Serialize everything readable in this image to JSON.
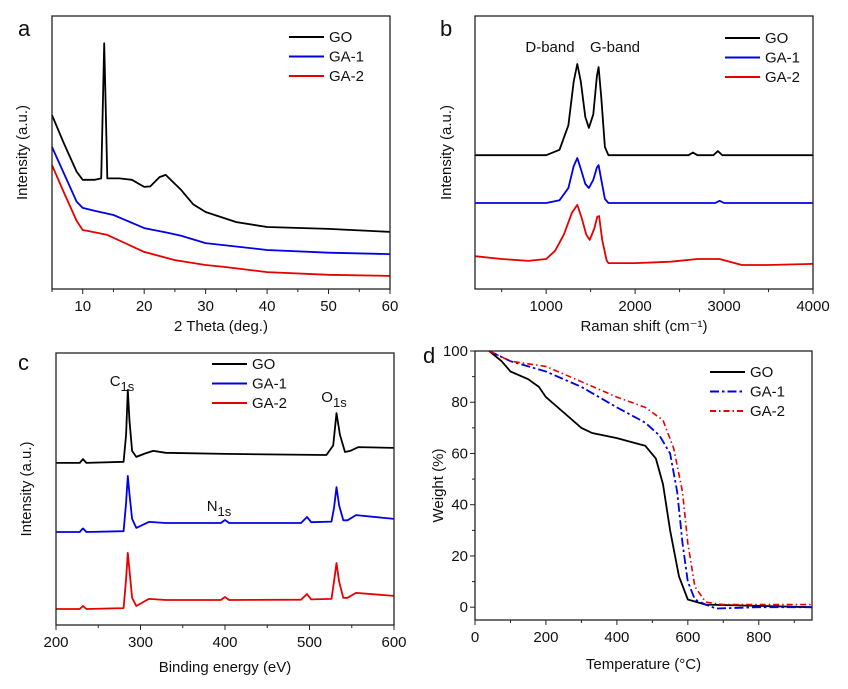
{
  "chart_data": [
    {
      "panel": "a",
      "type": "line",
      "xlabel": "2 Theta (deg.)",
      "ylabel": "Intensity (a.u.)",
      "xlim": [
        5,
        60
      ],
      "ylim": [
        0,
        100
      ],
      "xticks": [
        10,
        20,
        30,
        40,
        50,
        60
      ],
      "grid": false,
      "legend": "top-right",
      "annotations": [],
      "series": [
        {
          "name": "GO",
          "color": "#000000",
          "style": "solid",
          "x": [
            5,
            7,
            9,
            10,
            12,
            13,
            13.3,
            13.5,
            13.7,
            14,
            16,
            18,
            20,
            21,
            22.5,
            23.5,
            25,
            26,
            28,
            30,
            35,
            40,
            50,
            60
          ],
          "y": [
            63.7,
            53,
            43,
            40,
            40,
            40.5,
            70,
            90,
            70,
            40.5,
            40.5,
            40,
            37.4,
            37.6,
            41,
            41.8,
            38.5,
            36.3,
            31,
            28.2,
            24.5,
            22.7,
            22,
            20.9
          ]
        },
        {
          "name": "GA-1",
          "color": "#0000e6",
          "style": "solid",
          "x": [
            5,
            7,
            9,
            10,
            12,
            15,
            20,
            24,
            26,
            30,
            40,
            50,
            60
          ],
          "y": [
            52,
            42,
            32,
            29.7,
            28.6,
            27.1,
            22.3,
            20.5,
            19.5,
            16.8,
            14.3,
            13.3,
            12.8
          ]
        },
        {
          "name": "GA-2",
          "color": "#e60000",
          "style": "solid",
          "x": [
            5,
            7,
            9,
            10,
            11,
            14,
            20,
            25,
            30,
            33,
            40,
            50,
            60
          ],
          "y": [
            45.4,
            35,
            25,
            21.6,
            21.2,
            19.8,
            13.6,
            10.6,
            8.8,
            8.1,
            6.2,
            5.2,
            4.8
          ]
        }
      ]
    },
    {
      "panel": "b",
      "type": "line",
      "xlabel": "Raman shift (cm⁻¹)",
      "ylabel": "Intensity (a.u.)",
      "xlim": [
        200,
        4000
      ],
      "ylim": [
        0,
        100
      ],
      "xticks": [
        1000,
        2000,
        3000,
        4000
      ],
      "grid": false,
      "legend": "top-right",
      "annotations": [
        {
          "text": "D-band"
        },
        {
          "text": "G-band"
        }
      ],
      "series": [
        {
          "name": "GO",
          "color": "#000000",
          "style": "solid",
          "x": [
            200,
            1000,
            1150,
            1250,
            1310,
            1350,
            1390,
            1440,
            1480,
            1530,
            1570,
            1590,
            1620,
            1660,
            1700,
            2600,
            2650,
            2700,
            2880,
            2930,
            2980,
            3200,
            4000
          ],
          "y": [
            49,
            49,
            51,
            60,
            76,
            82.4,
            76,
            63,
            59,
            64,
            78,
            81.3,
            70,
            52,
            49,
            49,
            50,
            49,
            49,
            50.5,
            49,
            49,
            49
          ]
        },
        {
          "name": "GA-1",
          "color": "#0000e6",
          "style": "solid",
          "x": [
            200,
            1000,
            1150,
            1250,
            1310,
            1350,
            1390,
            1440,
            1480,
            1530,
            1570,
            1590,
            1620,
            1660,
            1700,
            2900,
            2950,
            3000,
            4000
          ],
          "y": [
            31.5,
            31.5,
            32.5,
            37,
            45,
            48,
            44,
            38.5,
            37,
            40,
            44.5,
            45.4,
            40,
            33,
            31.5,
            31.5,
            32.3,
            31.5,
            31.5
          ]
        },
        {
          "name": "GA-2",
          "color": "#e60000",
          "style": "solid",
          "x": [
            200,
            500,
            800,
            1000,
            1100,
            1200,
            1290,
            1350,
            1400,
            1450,
            1490,
            1540,
            1575,
            1595,
            1630,
            1680,
            1700,
            2000,
            2400,
            2700,
            2950,
            3200,
            3500,
            4000
          ],
          "y": [
            12,
            11,
            10.3,
            11,
            14,
            20,
            28,
            30.8,
            26,
            20,
            18,
            22,
            26.5,
            26.7,
            18,
            10.5,
            9.5,
            9.5,
            10,
            11,
            11,
            8.8,
            8.8,
            9.2
          ]
        }
      ]
    },
    {
      "panel": "c",
      "type": "line",
      "xlabel": "Binding energy (eV)",
      "ylabel": "Intensity (a.u.)",
      "xlim": [
        200,
        600
      ],
      "ylim": [
        0,
        100
      ],
      "xticks": [
        200,
        300,
        400,
        500,
        600
      ],
      "grid": false,
      "legend": "top-center",
      "annotations": [
        {
          "text": "C",
          "sub": "1s"
        },
        {
          "text": "N",
          "sub": "1s"
        },
        {
          "text": "O",
          "sub": "1s"
        }
      ],
      "series": [
        {
          "name": "GO",
          "color": "#000000",
          "style": "solid",
          "x": [
            200,
            228,
            232,
            236,
            280,
            283,
            285,
            287,
            290,
            295,
            305,
            315,
            330,
            400,
            520,
            528,
            532,
            536,
            542,
            548,
            558,
            600
          ],
          "y": [
            59.6,
            59.6,
            61,
            59.6,
            60,
            70,
            86.4,
            75,
            64,
            61.8,
            63,
            64,
            63.3,
            62.9,
            62.5,
            66,
            77.9,
            70,
            63.6,
            64,
            65.4,
            65.1
          ]
        },
        {
          "name": "GA-1",
          "color": "#0000e6",
          "style": "solid",
          "x": [
            200,
            228,
            232,
            236,
            280,
            283,
            285,
            287,
            290,
            295,
            310,
            330,
            395,
            400,
            405,
            490,
            497,
            502,
            526,
            529,
            532,
            535,
            540,
            545,
            555,
            600
          ],
          "y": [
            34.2,
            34.2,
            35.5,
            34.2,
            34.5,
            45,
            54.8,
            48,
            39,
            35.7,
            37.9,
            37.5,
            37.5,
            38.6,
            37.5,
            37.5,
            39.7,
            37.8,
            38,
            43,
            50.7,
            44,
            38.5,
            38.5,
            40.4,
            39
          ]
        },
        {
          "name": "GA-2",
          "color": "#e60000",
          "style": "solid",
          "x": [
            200,
            228,
            232,
            236,
            280,
            283,
            285,
            287,
            290,
            295,
            310,
            330,
            395,
            400,
            405,
            490,
            497,
            502,
            526,
            529,
            532,
            535,
            540,
            545,
            555,
            600
          ],
          "y": [
            5.9,
            5.9,
            7,
            5.9,
            6.2,
            17,
            26.5,
            20,
            10,
            7,
            9.6,
            9.2,
            9.2,
            10.3,
            9.2,
            9.3,
            11.4,
            9.4,
            9.6,
            16,
            22.8,
            16,
            10,
            10,
            11.8,
            10.7
          ]
        }
      ]
    },
    {
      "panel": "d",
      "type": "line",
      "xlabel": "Temperature (°C)",
      "ylabel": "Weight (%)",
      "xlim": [
        0,
        950
      ],
      "ylim": [
        -5,
        100
      ],
      "xticks": [
        0,
        200,
        400,
        600,
        800
      ],
      "yticks": [
        0,
        20,
        40,
        60,
        80,
        100
      ],
      "grid": false,
      "legend": "top-right",
      "annotations": [],
      "series": [
        {
          "name": "GO",
          "color": "#000000",
          "style": "solid",
          "x": [
            40,
            75,
            100,
            150,
            180,
            200,
            250,
            300,
            330,
            400,
            480,
            510,
            530,
            550,
            575,
            600,
            650,
            950
          ],
          "y": [
            100,
            96,
            92,
            89,
            86,
            82,
            76,
            70,
            68,
            66,
            63,
            58,
            48,
            30,
            12,
            3,
            1,
            0
          ]
        },
        {
          "name": "GA-1",
          "color": "#0000e6",
          "style": "dash-dot",
          "x": [
            40,
            100,
            200,
            300,
            400,
            480,
            520,
            550,
            570,
            585,
            600,
            620,
            650,
            680,
            800,
            950
          ],
          "y": [
            100,
            96,
            92,
            86,
            78,
            72,
            67,
            60,
            45,
            25,
            10,
            3,
            1,
            -0.5,
            0,
            0
          ]
        },
        {
          "name": "GA-2",
          "color": "#e60000",
          "style": "dash-dot-thin",
          "x": [
            40,
            100,
            200,
            300,
            400,
            480,
            530,
            560,
            585,
            600,
            620,
            650,
            700,
            950
          ],
          "y": [
            100,
            96,
            94,
            88,
            82,
            78,
            73,
            62,
            45,
            25,
            8,
            2,
            1,
            1
          ]
        }
      ]
    }
  ]
}
